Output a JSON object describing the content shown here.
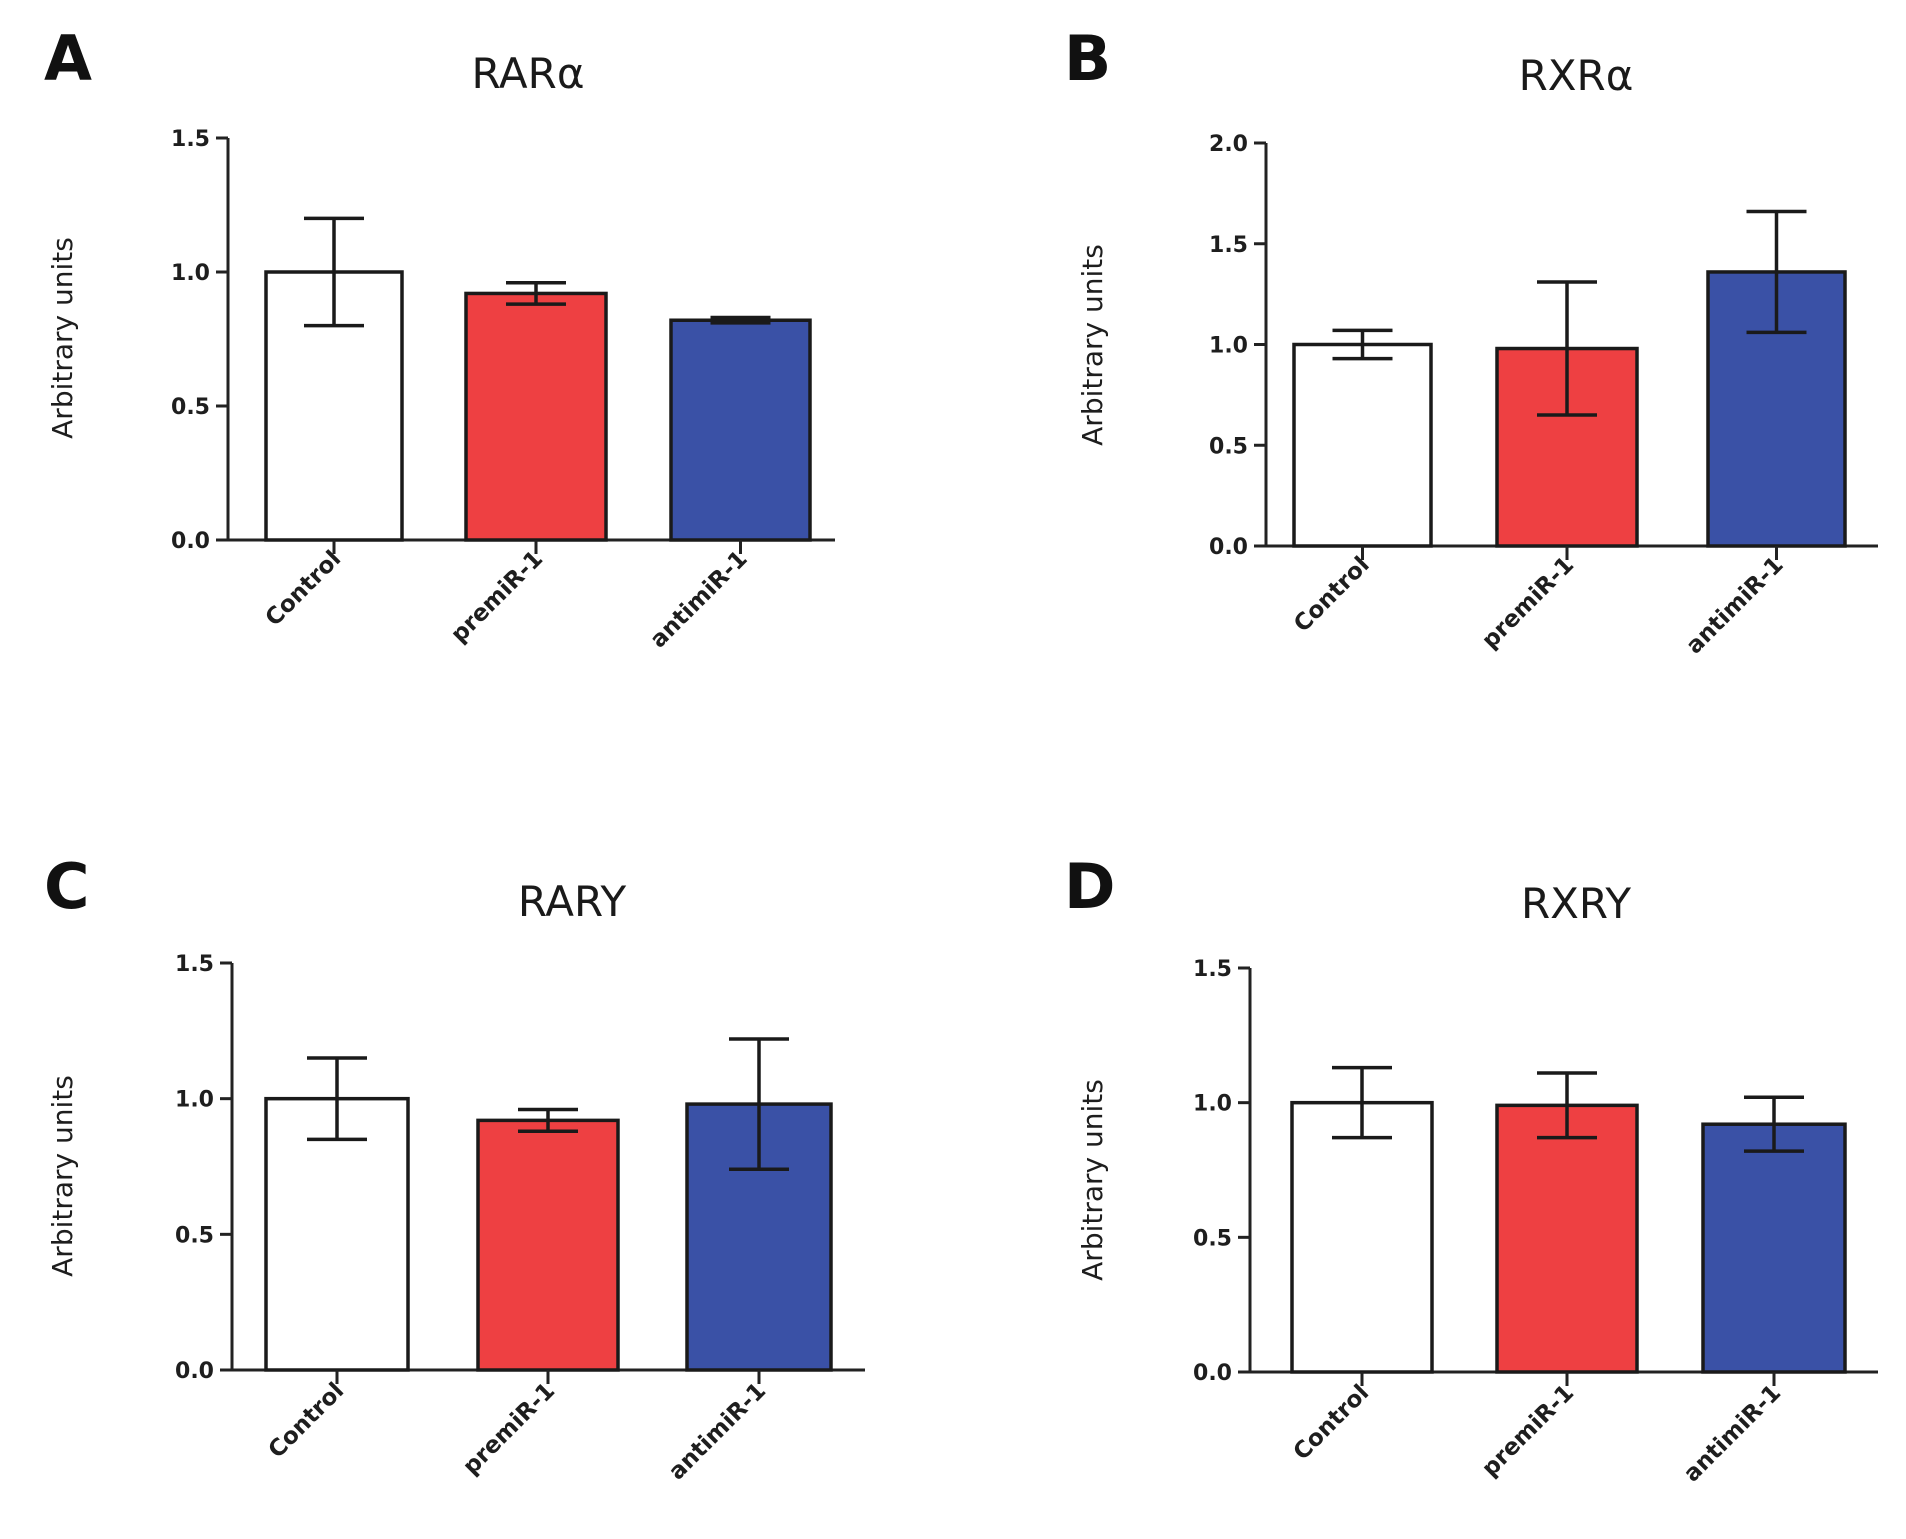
{
  "chart_data": [
    {
      "panel": "A",
      "title": "RARα",
      "type": "bar",
      "ylabel": "Arbitrary units",
      "ylim": [
        0,
        1.5
      ],
      "yticks": [
        "0.0",
        "0.5",
        "1.0",
        "1.5"
      ],
      "categories": [
        "Control",
        "premiR-1",
        "antimiR-1"
      ],
      "values": [
        1.0,
        0.92,
        0.82
      ],
      "errors": [
        0.2,
        0.04,
        0.01
      ],
      "colors": [
        "#ffffff",
        "#ee4042",
        "#3a51a6"
      ]
    },
    {
      "panel": "B",
      "title": "RXRα",
      "type": "bar",
      "ylabel": "Arbitrary units",
      "ylim": [
        0,
        2.0
      ],
      "yticks": [
        "0.0",
        "0.5",
        "1.0",
        "1.5",
        "2.0"
      ],
      "categories": [
        "Control",
        "premiR-1",
        "antimiR-1"
      ],
      "values": [
        1.0,
        0.98,
        1.36
      ],
      "errors": [
        0.07,
        0.33,
        0.3
      ],
      "colors": [
        "#ffffff",
        "#ee4042",
        "#3a51a6"
      ]
    },
    {
      "panel": "C",
      "title": "RARY",
      "type": "bar",
      "ylabel": "Arbitrary units",
      "ylim": [
        0,
        1.5
      ],
      "yticks": [
        "0.0",
        "0.5",
        "1.0",
        "1.5"
      ],
      "categories": [
        "Control",
        "premiR-1",
        "antimiR-1"
      ],
      "values": [
        1.0,
        0.92,
        0.98
      ],
      "errors": [
        0.15,
        0.04,
        0.24
      ],
      "colors": [
        "#ffffff",
        "#ee4042",
        "#3a51a6"
      ]
    },
    {
      "panel": "D",
      "title": "RXRY",
      "type": "bar",
      "ylabel": "Arbitrary units",
      "ylim": [
        0,
        1.5
      ],
      "yticks": [
        "0.0",
        "0.5",
        "1.0",
        "1.5"
      ],
      "categories": [
        "Control",
        "premiR-1",
        "antimiR-1"
      ],
      "values": [
        1.0,
        0.99,
        0.92
      ],
      "errors": [
        0.13,
        0.12,
        0.1
      ],
      "colors": [
        "#ffffff",
        "#ee4042",
        "#3a51a6"
      ]
    }
  ]
}
